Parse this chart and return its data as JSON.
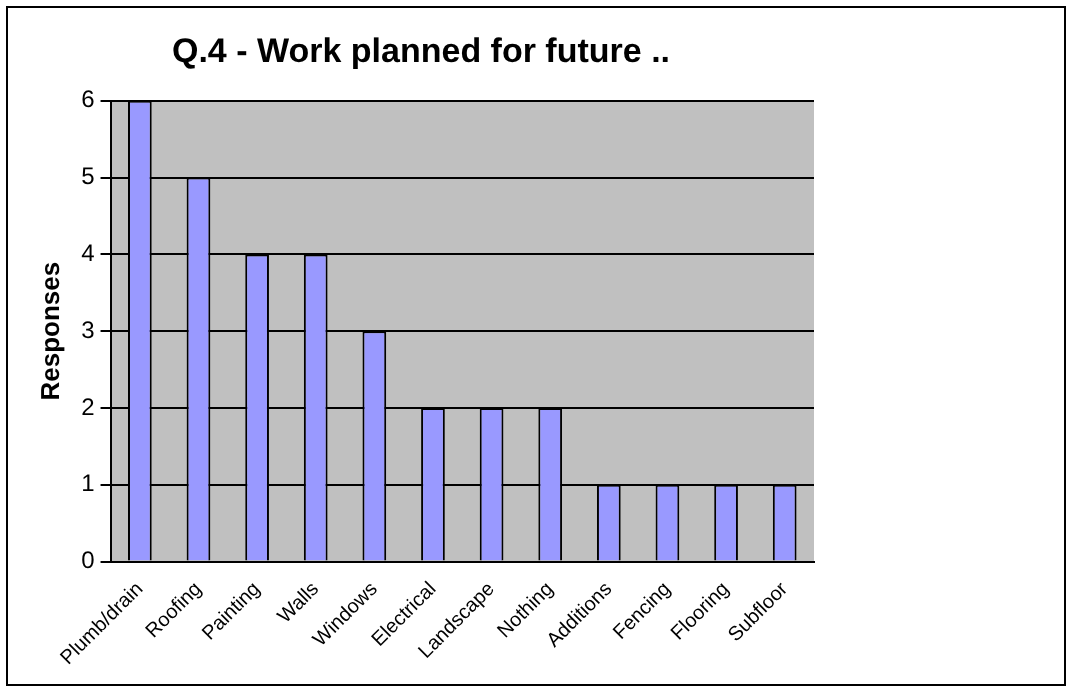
{
  "chart_data": {
    "type": "bar",
    "title": "Q.4 - Work planned for future ..",
    "ylabel": "Responses",
    "categories": [
      "Plumb/drain",
      "Roofing",
      "Painting",
      "Walls",
      "Windows",
      "Electrical",
      "Landscape",
      "Nothing",
      "Additions",
      "Fencing",
      "Flooring",
      "Subfloor"
    ],
    "values": [
      6,
      5,
      4,
      4,
      3,
      2,
      2,
      2,
      1,
      1,
      1,
      1
    ],
    "color": "#9999ff",
    "ylim": [
      0,
      6
    ],
    "yticks": [
      0,
      1,
      2,
      3,
      4,
      5,
      6
    ],
    "grid": "y",
    "legend": false
  }
}
